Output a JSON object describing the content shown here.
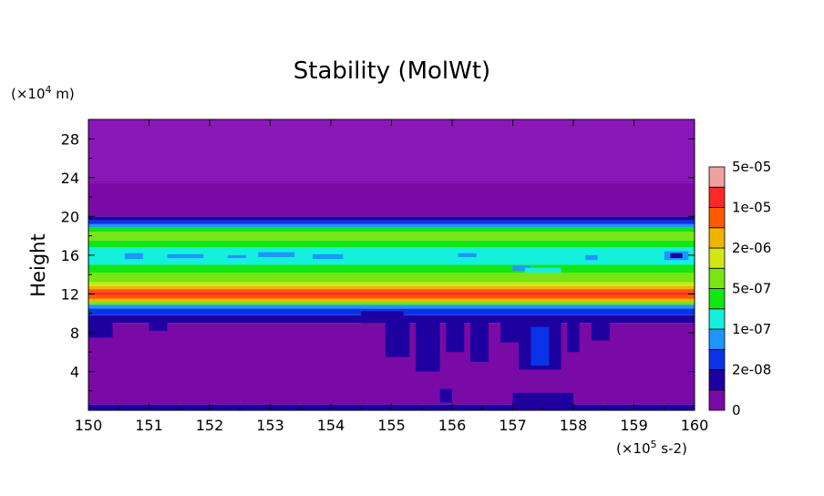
{
  "chart_data": {
    "type": "heatmap",
    "title": "Stability (MolWt)",
    "ylabel": "Height",
    "yunit_text": "(×10",
    "yunit_exp": "4",
    "yunit_suffix": " m)",
    "xunit_text": "(×10",
    "xunit_exp": "5",
    "xunit_suffix": " s-2)",
    "xlim": [
      150,
      160
    ],
    "ylim": [
      0,
      30
    ],
    "xticks": [
      "150",
      "151",
      "152",
      "153",
      "154",
      "155",
      "156",
      "157",
      "158",
      "159",
      "160"
    ],
    "yticks": [
      "4",
      "8",
      "12",
      "16",
      "20",
      "24",
      "28"
    ],
    "colorbar": {
      "colors": [
        "#7a0aa5",
        "#1e00a0",
        "#0a32e6",
        "#1e96ff",
        "#14f0dc",
        "#14e614",
        "#78e614",
        "#d2e614",
        "#f0b400",
        "#ff5a00",
        "#ff2828",
        "#f0a0a0"
      ],
      "labels": [
        "0",
        "2e-08",
        "1e-07",
        "5e-07",
        "2e-06",
        "1e-05",
        "5e-05"
      ]
    },
    "bands": [
      {
        "y0": 0.0,
        "y1": 0.6,
        "color": "#1e00a0"
      },
      {
        "y0": 0.6,
        "y1": 9.0,
        "color": "#7a0aa5"
      },
      {
        "y0": 9.0,
        "y1": 9.8,
        "color": "#1e00a0"
      },
      {
        "y0": 9.8,
        "y1": 10.5,
        "color": "#0a32e6"
      },
      {
        "y0": 10.5,
        "y1": 10.9,
        "color": "#1e96ff"
      },
      {
        "y0": 10.9,
        "y1": 11.2,
        "color": "#78e614"
      },
      {
        "y0": 11.2,
        "y1": 11.5,
        "color": "#f0b400"
      },
      {
        "y0": 11.5,
        "y1": 11.9,
        "color": "#ff5a00"
      },
      {
        "y0": 11.9,
        "y1": 12.2,
        "color": "#ff2828"
      },
      {
        "y0": 12.2,
        "y1": 12.5,
        "color": "#ff5a00"
      },
      {
        "y0": 12.5,
        "y1": 12.8,
        "color": "#f0b400"
      },
      {
        "y0": 12.8,
        "y1": 13.2,
        "color": "#d2e614"
      },
      {
        "y0": 13.2,
        "y1": 14.2,
        "color": "#78e614"
      },
      {
        "y0": 14.2,
        "y1": 15.0,
        "color": "#14e614"
      },
      {
        "y0": 15.0,
        "y1": 16.8,
        "color": "#14f0dc"
      },
      {
        "y0": 16.8,
        "y1": 17.5,
        "color": "#14e614"
      },
      {
        "y0": 17.5,
        "y1": 18.4,
        "color": "#78e614"
      },
      {
        "y0": 18.4,
        "y1": 18.9,
        "color": "#14e614"
      },
      {
        "y0": 18.9,
        "y1": 19.2,
        "color": "#1e96ff"
      },
      {
        "y0": 19.2,
        "y1": 19.6,
        "color": "#0a32e6"
      },
      {
        "y0": 19.6,
        "y1": 20.0,
        "color": "#1e00a0"
      },
      {
        "y0": 20.0,
        "y1": 23.5,
        "color": "#7a0aa5"
      },
      {
        "y0": 23.5,
        "y1": 30.0,
        "color": "#7a0aa5"
      }
    ],
    "patches": [
      {
        "x0": 150.0,
        "x1": 160.0,
        "y0": 23.6,
        "y1": 30.0,
        "color": "#8a18b8"
      },
      {
        "x0": 150.6,
        "x1": 150.9,
        "y0": 15.6,
        "y1": 16.2,
        "color": "#1e96ff"
      },
      {
        "x0": 151.3,
        "x1": 151.9,
        "y0": 15.7,
        "y1": 16.1,
        "color": "#1e96ff"
      },
      {
        "x0": 152.3,
        "x1": 152.6,
        "y0": 15.7,
        "y1": 16.0,
        "color": "#1e96ff"
      },
      {
        "x0": 152.8,
        "x1": 153.4,
        "y0": 15.8,
        "y1": 16.3,
        "color": "#1e96ff"
      },
      {
        "x0": 153.7,
        "x1": 154.2,
        "y0": 15.6,
        "y1": 16.1,
        "color": "#1e96ff"
      },
      {
        "x0": 156.1,
        "x1": 156.4,
        "y0": 15.8,
        "y1": 16.2,
        "color": "#1e96ff"
      },
      {
        "x0": 157.0,
        "x1": 157.3,
        "y0": 14.4,
        "y1": 14.9,
        "color": "#1e96ff"
      },
      {
        "x0": 157.2,
        "x1": 157.8,
        "y0": 14.2,
        "y1": 14.7,
        "color": "#14f0dc"
      },
      {
        "x0": 158.2,
        "x1": 158.4,
        "y0": 15.5,
        "y1": 16.0,
        "color": "#1e96ff"
      },
      {
        "x0": 159.5,
        "x1": 159.9,
        "y0": 15.5,
        "y1": 16.4,
        "color": "#1e96ff"
      },
      {
        "x0": 159.6,
        "x1": 159.8,
        "y0": 15.7,
        "y1": 16.2,
        "color": "#1e00a0"
      },
      {
        "x0": 154.5,
        "x1": 155.2,
        "y0": 9.0,
        "y1": 10.2,
        "color": "#1e00a0"
      },
      {
        "x0": 154.9,
        "x1": 155.3,
        "y0": 5.5,
        "y1": 9.2,
        "color": "#1e00a0"
      },
      {
        "x0": 155.4,
        "x1": 155.8,
        "y0": 4.0,
        "y1": 9.2,
        "color": "#1e00a0"
      },
      {
        "x0": 155.9,
        "x1": 156.2,
        "y0": 6.0,
        "y1": 9.2,
        "color": "#1e00a0"
      },
      {
        "x0": 156.3,
        "x1": 156.6,
        "y0": 5.0,
        "y1": 9.2,
        "color": "#1e00a0"
      },
      {
        "x0": 156.8,
        "x1": 157.1,
        "y0": 7.0,
        "y1": 9.2,
        "color": "#1e00a0"
      },
      {
        "x0": 157.1,
        "x1": 157.8,
        "y0": 4.2,
        "y1": 9.2,
        "color": "#1e00a0"
      },
      {
        "x0": 157.3,
        "x1": 157.6,
        "y0": 4.6,
        "y1": 8.6,
        "color": "#0a32e6"
      },
      {
        "x0": 157.9,
        "x1": 158.1,
        "y0": 6.0,
        "y1": 9.2,
        "color": "#1e00a0"
      },
      {
        "x0": 158.3,
        "x1": 158.6,
        "y0": 7.2,
        "y1": 9.2,
        "color": "#1e00a0"
      },
      {
        "x0": 150.0,
        "x1": 150.4,
        "y0": 7.5,
        "y1": 9.2,
        "color": "#1e00a0"
      },
      {
        "x0": 151.0,
        "x1": 151.3,
        "y0": 8.2,
        "y1": 9.2,
        "color": "#1e00a0"
      },
      {
        "x0": 157.0,
        "x1": 158.0,
        "y0": 0.4,
        "y1": 1.8,
        "color": "#1e00a0"
      },
      {
        "x0": 155.8,
        "x1": 156.0,
        "y0": 0.8,
        "y1": 2.2,
        "color": "#1e00a0"
      }
    ]
  }
}
